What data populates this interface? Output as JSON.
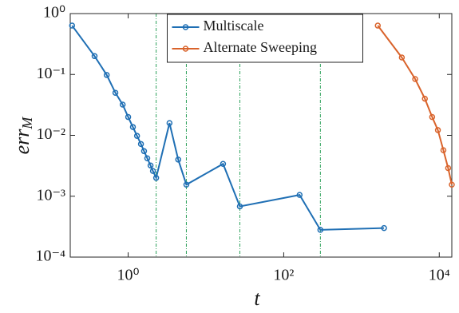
{
  "chart_data": {
    "type": "line",
    "log_x": true,
    "log_y": true,
    "xlabel": "t",
    "ylabel": {
      "text": "err",
      "subscript": "M"
    },
    "xlim": [
      0.18,
      14500
    ],
    "ylim": [
      0.0001,
      1
    ],
    "xticks": [
      {
        "value": 1,
        "label": "10⁰"
      },
      {
        "value": 100,
        "label": "10²"
      },
      {
        "value": 10000,
        "label": "10⁴"
      }
    ],
    "yticks": [
      {
        "value": 0.0001,
        "label": "10⁻⁴"
      },
      {
        "value": 0.001,
        "label": "10⁻³"
      },
      {
        "value": 0.01,
        "label": "10⁻²"
      },
      {
        "value": 0.1,
        "label": "10⁻¹"
      },
      {
        "value": 1,
        "label": "10⁰"
      }
    ],
    "legend": "north",
    "vlines": {
      "color": "#2ca05a",
      "x": [
        2.29,
        5.6,
        27.3,
        296
      ]
    },
    "series": [
      {
        "name": "Multiscale",
        "color": "#1f6fb4",
        "x": [
          0.19,
          0.37,
          0.53,
          0.685,
          0.85,
          1.0,
          1.15,
          1.3,
          1.46,
          1.6,
          1.76,
          1.94,
          2.08,
          2.29,
          3.4,
          4.4,
          5.6,
          16.6,
          27.3,
          160,
          296,
          1950
        ],
        "values": [
          0.635,
          0.2,
          0.098,
          0.05,
          0.032,
          0.02,
          0.0137,
          0.0098,
          0.0072,
          0.0055,
          0.0042,
          0.0032,
          0.0026,
          0.002,
          0.0159,
          0.004,
          0.00155,
          0.0034,
          0.00068,
          0.00105,
          0.00028,
          0.0003
        ]
      },
      {
        "name": "Alternate Sweeping",
        "color": "#d9632b",
        "x": [
          1620,
          3300,
          4900,
          6530,
          8100,
          9600,
          11300,
          13000,
          14500
        ],
        "values": [
          0.635,
          0.19,
          0.084,
          0.04,
          0.02,
          0.0122,
          0.0057,
          0.0029,
          0.00155
        ]
      }
    ]
  }
}
